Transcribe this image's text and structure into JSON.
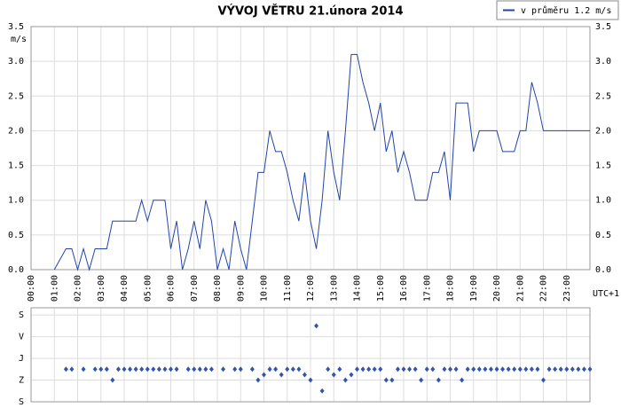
{
  "chart_data": [
    {
      "type": "line",
      "title": "VÝVOJ VĚTRU  21.února 2014",
      "y_label": "m/s",
      "x_label": "UTC+1",
      "x": [
        1,
        1.5,
        1.75,
        2,
        2.25,
        2.5,
        2.75,
        3.25,
        3.5,
        4.5,
        4.75,
        5,
        5.25,
        5.75,
        6,
        6.25,
        6.5,
        6.75,
        7,
        7.25,
        7.5,
        7.75,
        8,
        8.25,
        8.5,
        8.75,
        9,
        9.25,
        9.5,
        9.75,
        10,
        10.25,
        10.5,
        10.75,
        11,
        11.25,
        11.5,
        11.75,
        12,
        12.25,
        12.5,
        12.75,
        13,
        13.25,
        13.5,
        13.75,
        14,
        14.25,
        14.5,
        14.75,
        15,
        15.25,
        15.5,
        15.75,
        16,
        16.25,
        16.5,
        17,
        17.25,
        17.5,
        17.75,
        18,
        18.25,
        18.75,
        19,
        19.25,
        20,
        20.25,
        20.75,
        21,
        21.25,
        21.5,
        21.75,
        22,
        24
      ],
      "series": [
        {
          "name": "v průměru 1.2 m/s",
          "color": "#2244aa",
          "values": [
            0,
            0.3,
            0.3,
            0,
            0.3,
            0,
            0.3,
            0.3,
            0.7,
            0.7,
            1.0,
            0.7,
            1.0,
            1.0,
            0.3,
            0.7,
            0,
            0.3,
            0.7,
            0.3,
            1.0,
            0.7,
            0,
            0.3,
            0,
            0.7,
            0.3,
            0,
            0.7,
            1.4,
            1.4,
            2.0,
            1.7,
            1.7,
            1.4,
            1.0,
            0.7,
            1.4,
            0.7,
            0.3,
            1.0,
            2.0,
            1.4,
            1.0,
            2.0,
            3.1,
            3.1,
            2.7,
            2.4,
            2.0,
            2.4,
            1.7,
            2.0,
            1.4,
            1.7,
            1.4,
            1.0,
            1.0,
            1.4,
            1.4,
            1.7,
            1.0,
            2.4,
            2.4,
            1.7,
            2.0,
            2.0,
            1.7,
            1.7,
            2.0,
            2.0,
            2.7,
            2.4,
            2.0,
            2.0
          ]
        }
      ],
      "xlim": [
        0,
        24
      ],
      "xticks": [
        {
          "value": 0,
          "label": "00:00"
        },
        {
          "value": 1,
          "label": "01:00"
        },
        {
          "value": 2,
          "label": "02:00"
        },
        {
          "value": 3,
          "label": "03:00"
        },
        {
          "value": 4,
          "label": "04:00"
        },
        {
          "value": 5,
          "label": "05:00"
        },
        {
          "value": 6,
          "label": "06:00"
        },
        {
          "value": 7,
          "label": "07:00"
        },
        {
          "value": 8,
          "label": "08:00"
        },
        {
          "value": 9,
          "label": "09:00"
        },
        {
          "value": 10,
          "label": "10:00"
        },
        {
          "value": 11,
          "label": "11:00"
        },
        {
          "value": 12,
          "label": "12:00"
        },
        {
          "value": 13,
          "label": "13:00"
        },
        {
          "value": 14,
          "label": "14:00"
        },
        {
          "value": 15,
          "label": "15:00"
        },
        {
          "value": 16,
          "label": "16:00"
        },
        {
          "value": 17,
          "label": "17:00"
        },
        {
          "value": 18,
          "label": "18:00"
        },
        {
          "value": 19,
          "label": "19:00"
        },
        {
          "value": 20,
          "label": "20:00"
        },
        {
          "value": 21,
          "label": "21:00"
        },
        {
          "value": 22,
          "label": "22:00"
        },
        {
          "value": 23,
          "label": "23:00"
        }
      ],
      "ylim": [
        0,
        3.5
      ],
      "yticks": [
        {
          "value": 0,
          "label": "0.0"
        },
        {
          "value": 0.5,
          "label": "0.5"
        },
        {
          "value": 1,
          "label": "1.0"
        },
        {
          "value": 1.5,
          "label": "1.5"
        },
        {
          "value": 2,
          "label": "2.0"
        },
        {
          "value": 2.5,
          "label": "2.5"
        },
        {
          "value": 3,
          "label": "3.0"
        },
        {
          "value": 3.5,
          "label": "3.5"
        }
      ],
      "grid": true,
      "legend": "top-right"
    },
    {
      "type": "scatter",
      "x": [
        1.5,
        1.75,
        2.25,
        2.75,
        3,
        3.25,
        3.5,
        3.75,
        4,
        4.25,
        4.5,
        4.75,
        5,
        5.25,
        5.5,
        5.75,
        6,
        6.25,
        6.75,
        7,
        7.25,
        7.5,
        7.75,
        8.25,
        8.75,
        9,
        9.5,
        9.75,
        10,
        10.25,
        10.5,
        10.75,
        11,
        11.25,
        11.5,
        11.75,
        12,
        12.25,
        12.5,
        12.75,
        13,
        13.25,
        13.5,
        13.75,
        14,
        14.25,
        14.5,
        14.75,
        15,
        15.25,
        15.5,
        15.75,
        16,
        16.25,
        16.5,
        16.75,
        17,
        17.25,
        17.5,
        17.75,
        18,
        18.25,
        18.5,
        18.75,
        19,
        19.25,
        19.5,
        19.75,
        20,
        20.25,
        20.5,
        20.75,
        21,
        21.25,
        21.5,
        21.75,
        22,
        22.25,
        22.5,
        22.75,
        23,
        23.25,
        23.5,
        23.75,
        24
      ],
      "series": [
        {
          "color": "#3355aa",
          "values": [
            225,
            225,
            225,
            225,
            225,
            225,
            270,
            225,
            225,
            225,
            225,
            225,
            225,
            225,
            225,
            225,
            225,
            225,
            225,
            225,
            225,
            225,
            225,
            225,
            225,
            225,
            225,
            270,
            248,
            225,
            225,
            248,
            225,
            225,
            225,
            248,
            270,
            45,
            315,
            225,
            248,
            225,
            270,
            248,
            225,
            225,
            225,
            225,
            225,
            270,
            270,
            225,
            225,
            225,
            225,
            270,
            225,
            225,
            270,
            225,
            225,
            225,
            270,
            225,
            225,
            225,
            225,
            225,
            225,
            225,
            225,
            225,
            225,
            225,
            225,
            225,
            270,
            225,
            225,
            225,
            225,
            225,
            225,
            225,
            225
          ]
        }
      ],
      "xlim": [
        0,
        24
      ],
      "ylim": [
        360,
        -30
      ],
      "yticks": [
        {
          "value": 0,
          "label": "S"
        },
        {
          "value": 90,
          "label": "V"
        },
        {
          "value": 180,
          "label": "J"
        },
        {
          "value": 270,
          "label": "Z"
        },
        {
          "value": 360,
          "label": "S"
        }
      ],
      "grid": true
    }
  ]
}
